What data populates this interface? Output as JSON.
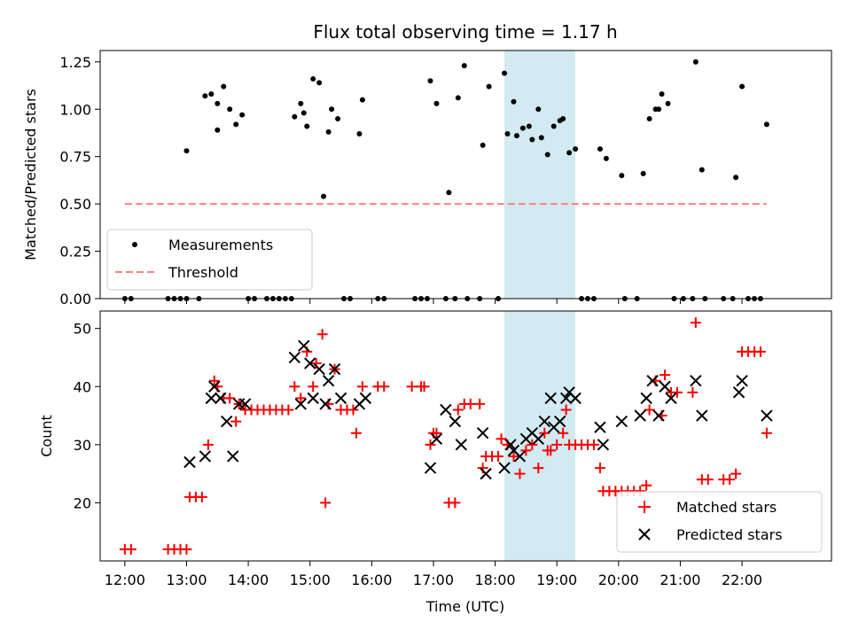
{
  "chart_data": [
    {
      "type": "scatter",
      "title": "Flux total observing time = 1.17 h",
      "xlabel": "",
      "ylabel": "Matched/Predicted stars",
      "xlim": [
        11.6,
        23.45
      ],
      "ylim": [
        0,
        1.31
      ],
      "yticks": [
        0.0,
        0.25,
        0.5,
        0.75,
        1.0,
        1.25
      ],
      "ytick_labels": [
        "0.00",
        "0.25",
        "0.50",
        "0.75",
        "1.00",
        "1.25"
      ],
      "highlight_span": [
        18.15,
        19.3
      ],
      "highlight_color": "#add8e6",
      "grid": false,
      "legend": {
        "position": "lower-left",
        "entries": [
          "Measurements",
          "Threshold"
        ]
      },
      "series": [
        {
          "name": "Measurements",
          "marker": "dot",
          "color": "#000000",
          "points": [
            [
              12.0,
              0.0
            ],
            [
              12.1,
              0.0
            ],
            [
              12.7,
              0.0
            ],
            [
              12.8,
              0.0
            ],
            [
              12.9,
              0.0
            ],
            [
              13.0,
              0.0
            ],
            [
              13.0,
              0.78
            ],
            [
              13.2,
              0.0
            ],
            [
              13.3,
              1.07
            ],
            [
              13.4,
              1.08
            ],
            [
              13.5,
              1.03
            ],
            [
              13.5,
              0.89
            ],
            [
              13.6,
              1.12
            ],
            [
              13.7,
              1.0
            ],
            [
              13.8,
              0.92
            ],
            [
              13.9,
              0.97
            ],
            [
              14.0,
              0.0
            ],
            [
              14.1,
              0.0
            ],
            [
              14.3,
              0.0
            ],
            [
              14.4,
              0.0
            ],
            [
              14.5,
              0.0
            ],
            [
              14.6,
              0.0
            ],
            [
              14.7,
              0.0
            ],
            [
              14.75,
              0.96
            ],
            [
              14.85,
              1.03
            ],
            [
              14.9,
              0.98
            ],
            [
              14.95,
              0.91
            ],
            [
              15.05,
              1.16
            ],
            [
              15.15,
              1.14
            ],
            [
              15.22,
              0.54
            ],
            [
              15.3,
              0.88
            ],
            [
              15.35,
              1.0
            ],
            [
              15.45,
              0.95
            ],
            [
              15.55,
              0.0
            ],
            [
              15.65,
              0.0
            ],
            [
              15.8,
              0.87
            ],
            [
              15.85,
              1.05
            ],
            [
              16.1,
              0.0
            ],
            [
              16.2,
              0.0
            ],
            [
              16.7,
              0.0
            ],
            [
              16.8,
              0.0
            ],
            [
              16.9,
              0.0
            ],
            [
              16.95,
              1.15
            ],
            [
              17.05,
              1.03
            ],
            [
              17.2,
              0.0
            ],
            [
              17.25,
              0.56
            ],
            [
              17.35,
              0.0
            ],
            [
              17.4,
              1.06
            ],
            [
              17.5,
              1.23
            ],
            [
              17.55,
              0.0
            ],
            [
              17.75,
              0.0
            ],
            [
              17.8,
              0.81
            ],
            [
              17.9,
              1.12
            ],
            [
              18.05,
              0.0
            ],
            [
              18.15,
              1.19
            ],
            [
              18.2,
              0.87
            ],
            [
              18.3,
              1.04
            ],
            [
              18.35,
              0.86
            ],
            [
              18.45,
              0.9
            ],
            [
              18.55,
              0.91
            ],
            [
              18.6,
              0.84
            ],
            [
              18.7,
              1.0
            ],
            [
              18.75,
              0.85
            ],
            [
              18.85,
              0.76
            ],
            [
              18.95,
              0.91
            ],
            [
              19.05,
              0.94
            ],
            [
              19.1,
              0.95
            ],
            [
              19.2,
              0.77
            ],
            [
              19.3,
              0.79
            ],
            [
              19.4,
              0.0
            ],
            [
              19.5,
              0.0
            ],
            [
              19.6,
              0.0
            ],
            [
              19.7,
              0.79
            ],
            [
              19.8,
              0.74
            ],
            [
              20.05,
              0.65
            ],
            [
              20.1,
              0.0
            ],
            [
              20.3,
              0.0
            ],
            [
              20.4,
              0.66
            ],
            [
              20.5,
              0.95
            ],
            [
              20.6,
              1.0
            ],
            [
              20.65,
              1.0
            ],
            [
              20.7,
              1.08
            ],
            [
              20.8,
              1.03
            ],
            [
              20.9,
              0.0
            ],
            [
              21.05,
              0.0
            ],
            [
              21.2,
              0.0
            ],
            [
              21.25,
              1.25
            ],
            [
              21.35,
              0.68
            ],
            [
              21.4,
              0.0
            ],
            [
              21.7,
              0.0
            ],
            [
              21.85,
              0.0
            ],
            [
              21.9,
              0.64
            ],
            [
              22.0,
              1.12
            ],
            [
              22.1,
              0.0
            ],
            [
              22.2,
              0.0
            ],
            [
              22.3,
              0.0
            ],
            [
              22.4,
              0.92
            ]
          ]
        },
        {
          "name": "Threshold",
          "style": "dashed",
          "color": "#ff8080",
          "points": [
            [
              12.0,
              0.5
            ],
            [
              22.4,
              0.5
            ]
          ]
        }
      ]
    },
    {
      "type": "scatter",
      "title": "",
      "xlabel": "Time (UTC)",
      "ylabel": "Count",
      "xlim": [
        11.6,
        23.45
      ],
      "ylim": [
        10.0,
        53.0
      ],
      "yticks": [
        20,
        30,
        40,
        50
      ],
      "ytick_labels": [
        "20",
        "30",
        "40",
        "50"
      ],
      "xticks": [
        12,
        13,
        14,
        15,
        16,
        17,
        18,
        19,
        20,
        21,
        22
      ],
      "xtick_labels": [
        "12:00",
        "13:00",
        "14:00",
        "15:00",
        "16:00",
        "17:00",
        "18:00",
        "19:00",
        "20:00",
        "21:00",
        "22:00"
      ],
      "highlight_span": [
        18.15,
        19.3
      ],
      "highlight_color": "#add8e6",
      "grid": false,
      "legend": {
        "position": "lower-right",
        "entries": [
          "Matched stars",
          "Predicted stars"
        ]
      },
      "series": [
        {
          "name": "Matched stars",
          "marker": "plus",
          "color": "#ff0000",
          "points": [
            [
              12.0,
              12
            ],
            [
              12.1,
              12
            ],
            [
              12.7,
              12
            ],
            [
              12.8,
              12
            ],
            [
              12.9,
              12
            ],
            [
              13.0,
              12
            ],
            [
              13.05,
              21
            ],
            [
              13.15,
              21
            ],
            [
              13.25,
              21
            ],
            [
              13.35,
              30
            ],
            [
              13.45,
              41
            ],
            [
              13.5,
              40
            ],
            [
              13.6,
              38
            ],
            [
              13.7,
              38
            ],
            [
              13.8,
              34
            ],
            [
              13.85,
              37
            ],
            [
              13.95,
              36
            ],
            [
              14.05,
              36
            ],
            [
              14.15,
              36
            ],
            [
              14.25,
              36
            ],
            [
              14.35,
              36
            ],
            [
              14.45,
              36
            ],
            [
              14.55,
              36
            ],
            [
              14.65,
              36
            ],
            [
              14.75,
              40
            ],
            [
              14.85,
              38
            ],
            [
              14.95,
              46
            ],
            [
              15.05,
              40
            ],
            [
              15.1,
              44
            ],
            [
              15.2,
              49
            ],
            [
              15.25,
              20
            ],
            [
              15.3,
              37
            ],
            [
              15.4,
              43
            ],
            [
              15.5,
              36
            ],
            [
              15.6,
              36
            ],
            [
              15.7,
              36
            ],
            [
              15.75,
              32
            ],
            [
              15.85,
              40
            ],
            [
              16.1,
              40
            ],
            [
              16.2,
              40
            ],
            [
              16.65,
              40
            ],
            [
              16.8,
              40
            ],
            [
              16.85,
              40
            ],
            [
              16.95,
              30
            ],
            [
              17.0,
              32
            ],
            [
              17.05,
              32
            ],
            [
              17.25,
              20
            ],
            [
              17.35,
              20
            ],
            [
              17.4,
              36
            ],
            [
              17.5,
              37
            ],
            [
              17.6,
              37
            ],
            [
              17.75,
              37
            ],
            [
              17.8,
              26
            ],
            [
              17.85,
              28
            ],
            [
              17.95,
              28
            ],
            [
              18.05,
              28
            ],
            [
              18.1,
              31
            ],
            [
              18.2,
              30
            ],
            [
              18.3,
              28
            ],
            [
              18.4,
              25
            ],
            [
              18.5,
              29
            ],
            [
              18.6,
              30
            ],
            [
              18.7,
              26
            ],
            [
              18.8,
              32
            ],
            [
              18.85,
              29
            ],
            [
              18.9,
              29
            ],
            [
              19.0,
              30
            ],
            [
              19.1,
              32
            ],
            [
              19.15,
              36
            ],
            [
              19.2,
              30
            ],
            [
              19.3,
              30
            ],
            [
              19.4,
              30
            ],
            [
              19.5,
              30
            ],
            [
              19.6,
              30
            ],
            [
              19.7,
              26
            ],
            [
              19.75,
              22
            ],
            [
              19.85,
              22
            ],
            [
              19.95,
              22
            ],
            [
              20.05,
              22
            ],
            [
              20.15,
              22
            ],
            [
              20.25,
              22
            ],
            [
              20.35,
              22
            ],
            [
              20.45,
              23
            ],
            [
              20.5,
              36
            ],
            [
              20.6,
              41
            ],
            [
              20.7,
              35
            ],
            [
              20.75,
              42
            ],
            [
              20.85,
              39
            ],
            [
              20.95,
              39
            ],
            [
              21.2,
              39
            ],
            [
              21.25,
              51
            ],
            [
              21.35,
              24
            ],
            [
              21.45,
              24
            ],
            [
              21.7,
              24
            ],
            [
              21.8,
              24
            ],
            [
              21.9,
              25
            ],
            [
              22.0,
              46
            ],
            [
              22.1,
              46
            ],
            [
              22.2,
              46
            ],
            [
              22.3,
              46
            ],
            [
              22.4,
              32
            ]
          ]
        },
        {
          "name": "Predicted stars",
          "marker": "x",
          "color": "#000000",
          "points": [
            [
              13.05,
              27
            ],
            [
              13.3,
              28
            ],
            [
              13.4,
              38
            ],
            [
              13.45,
              40
            ],
            [
              13.55,
              38
            ],
            [
              13.65,
              34
            ],
            [
              13.75,
              28
            ],
            [
              13.85,
              37
            ],
            [
              13.95,
              37
            ],
            [
              14.75,
              45
            ],
            [
              14.85,
              37
            ],
            [
              14.9,
              47
            ],
            [
              15.0,
              44
            ],
            [
              15.05,
              38
            ],
            [
              15.15,
              43
            ],
            [
              15.25,
              37
            ],
            [
              15.3,
              41
            ],
            [
              15.4,
              43
            ],
            [
              15.5,
              38
            ],
            [
              15.8,
              37
            ],
            [
              15.9,
              38
            ],
            [
              16.95,
              26
            ],
            [
              17.05,
              31
            ],
            [
              17.2,
              36
            ],
            [
              17.35,
              34
            ],
            [
              17.45,
              30
            ],
            [
              17.8,
              32
            ],
            [
              17.85,
              25
            ],
            [
              18.15,
              26
            ],
            [
              18.25,
              30
            ],
            [
              18.3,
              29
            ],
            [
              18.4,
              28
            ],
            [
              18.5,
              31
            ],
            [
              18.6,
              32
            ],
            [
              18.7,
              31
            ],
            [
              18.8,
              34
            ],
            [
              18.9,
              38
            ],
            [
              18.95,
              33
            ],
            [
              19.05,
              34
            ],
            [
              19.15,
              38
            ],
            [
              19.2,
              39
            ],
            [
              19.3,
              38
            ],
            [
              19.7,
              33
            ],
            [
              19.75,
              30
            ],
            [
              20.05,
              34
            ],
            [
              20.35,
              35
            ],
            [
              20.45,
              38
            ],
            [
              20.55,
              41
            ],
            [
              20.65,
              35
            ],
            [
              20.75,
              40
            ],
            [
              20.85,
              38
            ],
            [
              21.25,
              41
            ],
            [
              21.35,
              35
            ],
            [
              21.95,
              39
            ],
            [
              22.0,
              41
            ],
            [
              22.4,
              35
            ]
          ]
        }
      ]
    }
  ]
}
